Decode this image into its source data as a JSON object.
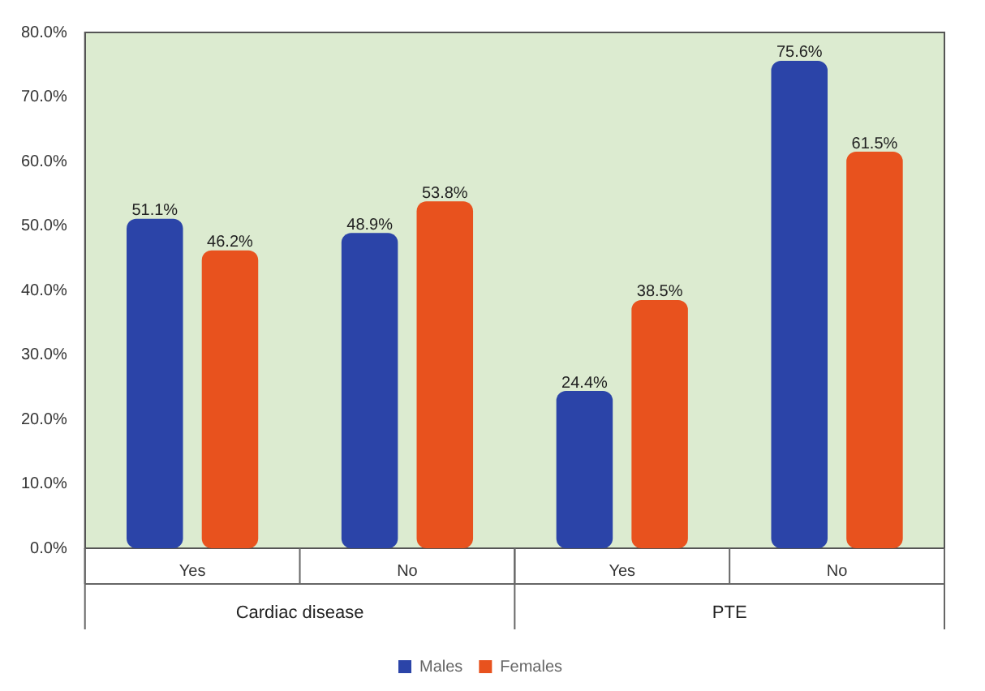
{
  "chart_data": {
    "type": "bar",
    "categories": [
      "Yes",
      "No",
      "Yes",
      "No"
    ],
    "series": [
      {
        "name": "Males",
        "color": "#2b44a8",
        "values": [
          51.1,
          48.9,
          24.4,
          75.6
        ],
        "value_labels": [
          "51.1%",
          "48.9%",
          "24.4%",
          "75.6%"
        ]
      },
      {
        "name": "Females",
        "color": "#e8521e",
        "values": [
          46.2,
          53.8,
          38.5,
          61.5
        ],
        "value_labels": [
          "46.2%",
          "53.8%",
          "38.5%",
          "61.5%"
        ]
      }
    ],
    "annotations": [
      "Cardiac disease",
      "PTE"
    ],
    "ylim": [
      0,
      80
    ],
    "yticks": [
      {
        "value": 0,
        "label": "0.0%"
      },
      {
        "value": 10,
        "label": "10.0%"
      },
      {
        "value": 20,
        "label": "20.0%"
      },
      {
        "value": 30,
        "label": "30.0%"
      },
      {
        "value": 40,
        "label": "40.0%"
      },
      {
        "value": 50,
        "label": "50.0%"
      },
      {
        "value": 60,
        "label": "60.0%"
      },
      {
        "value": 70,
        "label": "70.0%"
      },
      {
        "value": 80,
        "label": "80.0%"
      }
    ],
    "grid": false,
    "legend": "bottom"
  }
}
